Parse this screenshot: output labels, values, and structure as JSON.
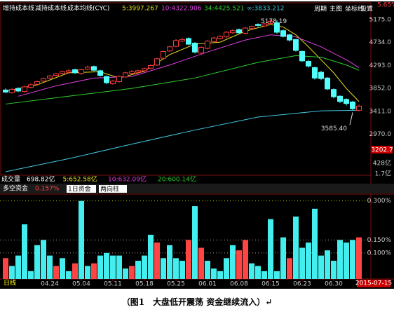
{
  "toolbar": {
    "items": [
      "周期",
      "主图",
      "坐标线",
      "设置"
    ],
    "corner": "5.65%"
  },
  "chart_data": [
    {
      "type": "candlestick",
      "legend": [
        "增持成本线",
        "减持成本线",
        "成本均线(CYC)"
      ],
      "open": [
        3820,
        3770,
        3850,
        3790,
        3870,
        3930,
        3990,
        4050,
        4100,
        4140,
        4160,
        4210,
        4140,
        4220,
        4270,
        4190,
        4080,
        3940,
        3980,
        4070,
        4140,
        4160,
        4190,
        4240,
        4300,
        4430,
        4570,
        4660,
        4760,
        4810,
        4720,
        4530,
        4620,
        4750,
        4810,
        4840,
        4920,
        4980,
        4910,
        5000,
        5080,
        5050,
        5100,
        5110,
        4960,
        4880,
        4790,
        4560,
        4370,
        4250,
        4160,
        4050,
        3830,
        3700,
        3640,
        3590,
        3430
      ],
      "high": [
        3850,
        3860,
        3870,
        3900,
        3950,
        4000,
        4060,
        4110,
        4150,
        4190,
        4220,
        4230,
        4230,
        4290,
        4290,
        4210,
        4100,
        4010,
        4100,
        4170,
        4200,
        4210,
        4250,
        4310,
        4440,
        4580,
        4670,
        4800,
        4820,
        4830,
        4740,
        4660,
        4780,
        4840,
        4870,
        4950,
        4990,
        5000,
        5030,
        5060,
        5100,
        5110,
        5178.19,
        5160,
        4980,
        4900,
        4800,
        4580,
        4400,
        4270,
        4190,
        4070,
        3850,
        3720,
        3660,
        3610,
        3540
      ],
      "low": [
        3760,
        3750,
        3780,
        3770,
        3850,
        3900,
        3970,
        4030,
        4080,
        4120,
        4140,
        4130,
        4110,
        4200,
        4180,
        4080,
        3930,
        3920,
        3960,
        4050,
        4120,
        4140,
        4170,
        4220,
        4280,
        4400,
        4550,
        4640,
        4740,
        4680,
        4520,
        4500,
        4600,
        4730,
        4790,
        4820,
        4900,
        4900,
        4890,
        4980,
        5040,
        5030,
        5080,
        4900,
        4830,
        4750,
        4560,
        4360,
        4250,
        4020,
        4010,
        3820,
        3660,
        3570,
        3520,
        3430,
        3410
      ],
      "close": [
        3780,
        3830,
        3800,
        3880,
        3920,
        3980,
        4040,
        4090,
        4130,
        4170,
        4190,
        4150,
        4210,
        4260,
        4200,
        4100,
        3960,
        3990,
        4080,
        4150,
        4170,
        4190,
        4230,
        4290,
        4420,
        4560,
        4650,
        4770,
        4790,
        4700,
        4550,
        4640,
        4760,
        4820,
        4850,
        4930,
        4960,
        4920,
        5010,
        5040,
        5060,
        5090,
        5140,
        4930,
        4850,
        4780,
        4580,
        4380,
        4280,
        4050,
        4040,
        3840,
        3690,
        3600,
        3560,
        3460,
        3510
      ],
      "up_color": "#ff3c3c",
      "down_color": "#54ffff",
      "series": [
        {
          "name": "5:3997.267",
          "color": "#e8e020",
          "x": [
            0,
            5,
            10,
            15,
            18,
            22,
            26,
            30,
            34,
            38,
            42,
            44,
            46,
            48,
            50,
            52,
            54,
            56
          ],
          "values": [
            3800,
            3920,
            4150,
            4170,
            4050,
            4180,
            4500,
            4700,
            4740,
            4950,
            5080,
            5030,
            4880,
            4650,
            4400,
            4150,
            3850,
            3600
          ]
        },
        {
          "name": "10:4322.906",
          "color": "#e040e0",
          "x": [
            2,
            8,
            14,
            20,
            26,
            32,
            38,
            42,
            46,
            50,
            54,
            56
          ],
          "values": [
            3700,
            3900,
            4050,
            4080,
            4300,
            4550,
            4780,
            4880,
            4840,
            4650,
            4400,
            4250
          ]
        },
        {
          "name": "34:4425.521",
          "color": "#30d030",
          "x": [
            0,
            10,
            20,
            30,
            40,
            46,
            50,
            54,
            56
          ],
          "values": [
            3550,
            3700,
            3850,
            4050,
            4350,
            4480,
            4450,
            4300,
            4200
          ]
        },
        {
          "name": "∞:3833.212",
          "color": "#40c8e0",
          "x": [
            0,
            10,
            20,
            30,
            40,
            50,
            56
          ],
          "values": [
            2250,
            2500,
            2780,
            3050,
            3300,
            3420,
            3430
          ]
        }
      ],
      "ylim": [
        2209,
        5482
      ],
      "yticks": [
        {
          "value": 5175,
          "label": "5175.0"
        },
        {
          "value": 4734,
          "label": "4734.0"
        },
        {
          "value": 4293,
          "label": "4293.0"
        },
        {
          "value": 3852,
          "label": "3852.0"
        },
        {
          "value": 3411,
          "label": "3411.0"
        },
        {
          "value": 2970,
          "label": "2970.0"
        }
      ],
      "price_label": "3202.7",
      "annotations": [
        {
          "text": "5178.19",
          "x": 42
        },
        {
          "text": "3585.40",
          "x": 55
        }
      ]
    },
    {
      "type": "bar",
      "title": "多空资金",
      "value_label": "0.157%",
      "controls": [
        "1日资金",
        "两向柱"
      ],
      "values": [
        0.08,
        0.05,
        0.09,
        0.21,
        0.03,
        0.13,
        0.15,
        0.09,
        0.05,
        0.08,
        0.03,
        0.06,
        0.3,
        0.05,
        0.06,
        0.09,
        0.1,
        0.09,
        0.09,
        0.04,
        0.05,
        0.07,
        0.09,
        0.17,
        0.14,
        0.08,
        0.13,
        0.08,
        0.07,
        0.15,
        0.28,
        0.12,
        0.07,
        0.04,
        0.03,
        0.08,
        0.13,
        0.11,
        0.15,
        0.06,
        0.05,
        0.03,
        0.23,
        0.03,
        0.16,
        0.08,
        0.24,
        0.12,
        0.14,
        0.27,
        0.09,
        0.11,
        0.07,
        0.15,
        0.14,
        0.15,
        0.16
      ],
      "colors": [
        "#f44",
        "#4ee",
        "#4ee",
        "#4ee",
        "#4ee",
        "#4ee",
        "#4ee",
        "#4ee",
        "#f44",
        "#4ee",
        "#4ee",
        "#f44",
        "#4ee",
        "#4ee",
        "#f44",
        "#4ee",
        "#4ee",
        "#4ee",
        "#4ee",
        "#4ee",
        "#f44",
        "#4ee",
        "#4ee",
        "#4ee",
        "#f44",
        "#4ee",
        "#4ee",
        "#4ee",
        "#4ee",
        "#f44",
        "#4ee",
        "#f44",
        "#4ee",
        "#4ee",
        "#4ee",
        "#4ee",
        "#4ee",
        "#f44",
        "#f44",
        "#4ee",
        "#4ee",
        "#4ee",
        "#4ee",
        "#4ee",
        "#4ee",
        "#f44",
        "#4ee",
        "#4ee",
        "#4ee",
        "#4ee",
        "#4ee",
        "#4ee",
        "#4ee",
        "#4ee",
        "#4ee",
        "#4ee",
        "#f44"
      ],
      "ylim": [
        0,
        0.318
      ],
      "yticks": [
        {
          "value": 0.3,
          "label": "0.300%"
        },
        {
          "value": 0.15,
          "label": "0.150%"
        },
        {
          "value": 0.1,
          "label": "0.100%"
        }
      ],
      "grid": true,
      "xticks": [
        {
          "value": 7,
          "label": "04.24"
        },
        {
          "value": 12,
          "label": "05.04"
        },
        {
          "value": 17,
          "label": "05.11"
        },
        {
          "value": 22,
          "label": "05.18"
        },
        {
          "value": 27,
          "label": "05.25"
        },
        {
          "value": 32,
          "label": "06.01"
        },
        {
          "value": 37,
          "label": "06.08"
        },
        {
          "value": 42,
          "label": "06.15"
        },
        {
          "value": 47,
          "label": "06.23"
        },
        {
          "value": 52,
          "label": "06.30"
        }
      ],
      "cursor_label": "2015-07-15"
    }
  ],
  "volume_panel": {
    "legend": [
      "成交量",
      "698.82亿",
      "5:652.58亿",
      "10:632.09亿",
      "20:600.14亿"
    ],
    "axis_labels": [
      "428亿",
      "1.7亿"
    ]
  },
  "period": "日线",
  "caption": "（图1　大盘低开震荡 资金继续流入）↵"
}
